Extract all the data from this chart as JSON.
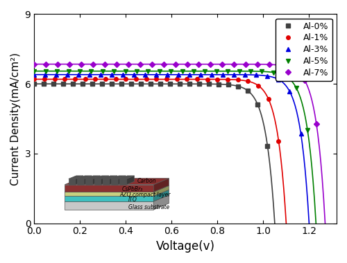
{
  "title": "",
  "xlabel": "Voltage(v)",
  "ylabel": "Current Density(mA/cm²)",
  "xlim": [
    0.0,
    1.32
  ],
  "ylim": [
    0,
    9
  ],
  "yticks": [
    0,
    3,
    6,
    9
  ],
  "xticks": [
    0.0,
    0.2,
    0.4,
    0.6,
    0.8,
    1.0,
    1.2
  ],
  "series": [
    {
      "label": "Al-0%",
      "color": "#404040",
      "marker": "s",
      "jsc": 6.0,
      "voc": 1.05,
      "ff": 0.72
    },
    {
      "label": "Al-1%",
      "color": "#e00000",
      "marker": "o",
      "jsc": 6.2,
      "voc": 1.1,
      "ff": 0.73
    },
    {
      "label": "Al-3%",
      "color": "#0000e0",
      "marker": "^",
      "jsc": 6.4,
      "voc": 1.2,
      "ff": 0.73
    },
    {
      "label": "Al-5%",
      "color": "#008000",
      "marker": "v",
      "jsc": 6.55,
      "voc": 1.23,
      "ff": 0.74
    },
    {
      "label": "Al-7%",
      "color": "#9900cc",
      "marker": "D",
      "jsc": 6.85,
      "voc": 1.27,
      "ff": 0.74
    }
  ],
  "background_color": "#ffffff",
  "figsize": [
    5.0,
    3.8
  ],
  "dpi": 100
}
